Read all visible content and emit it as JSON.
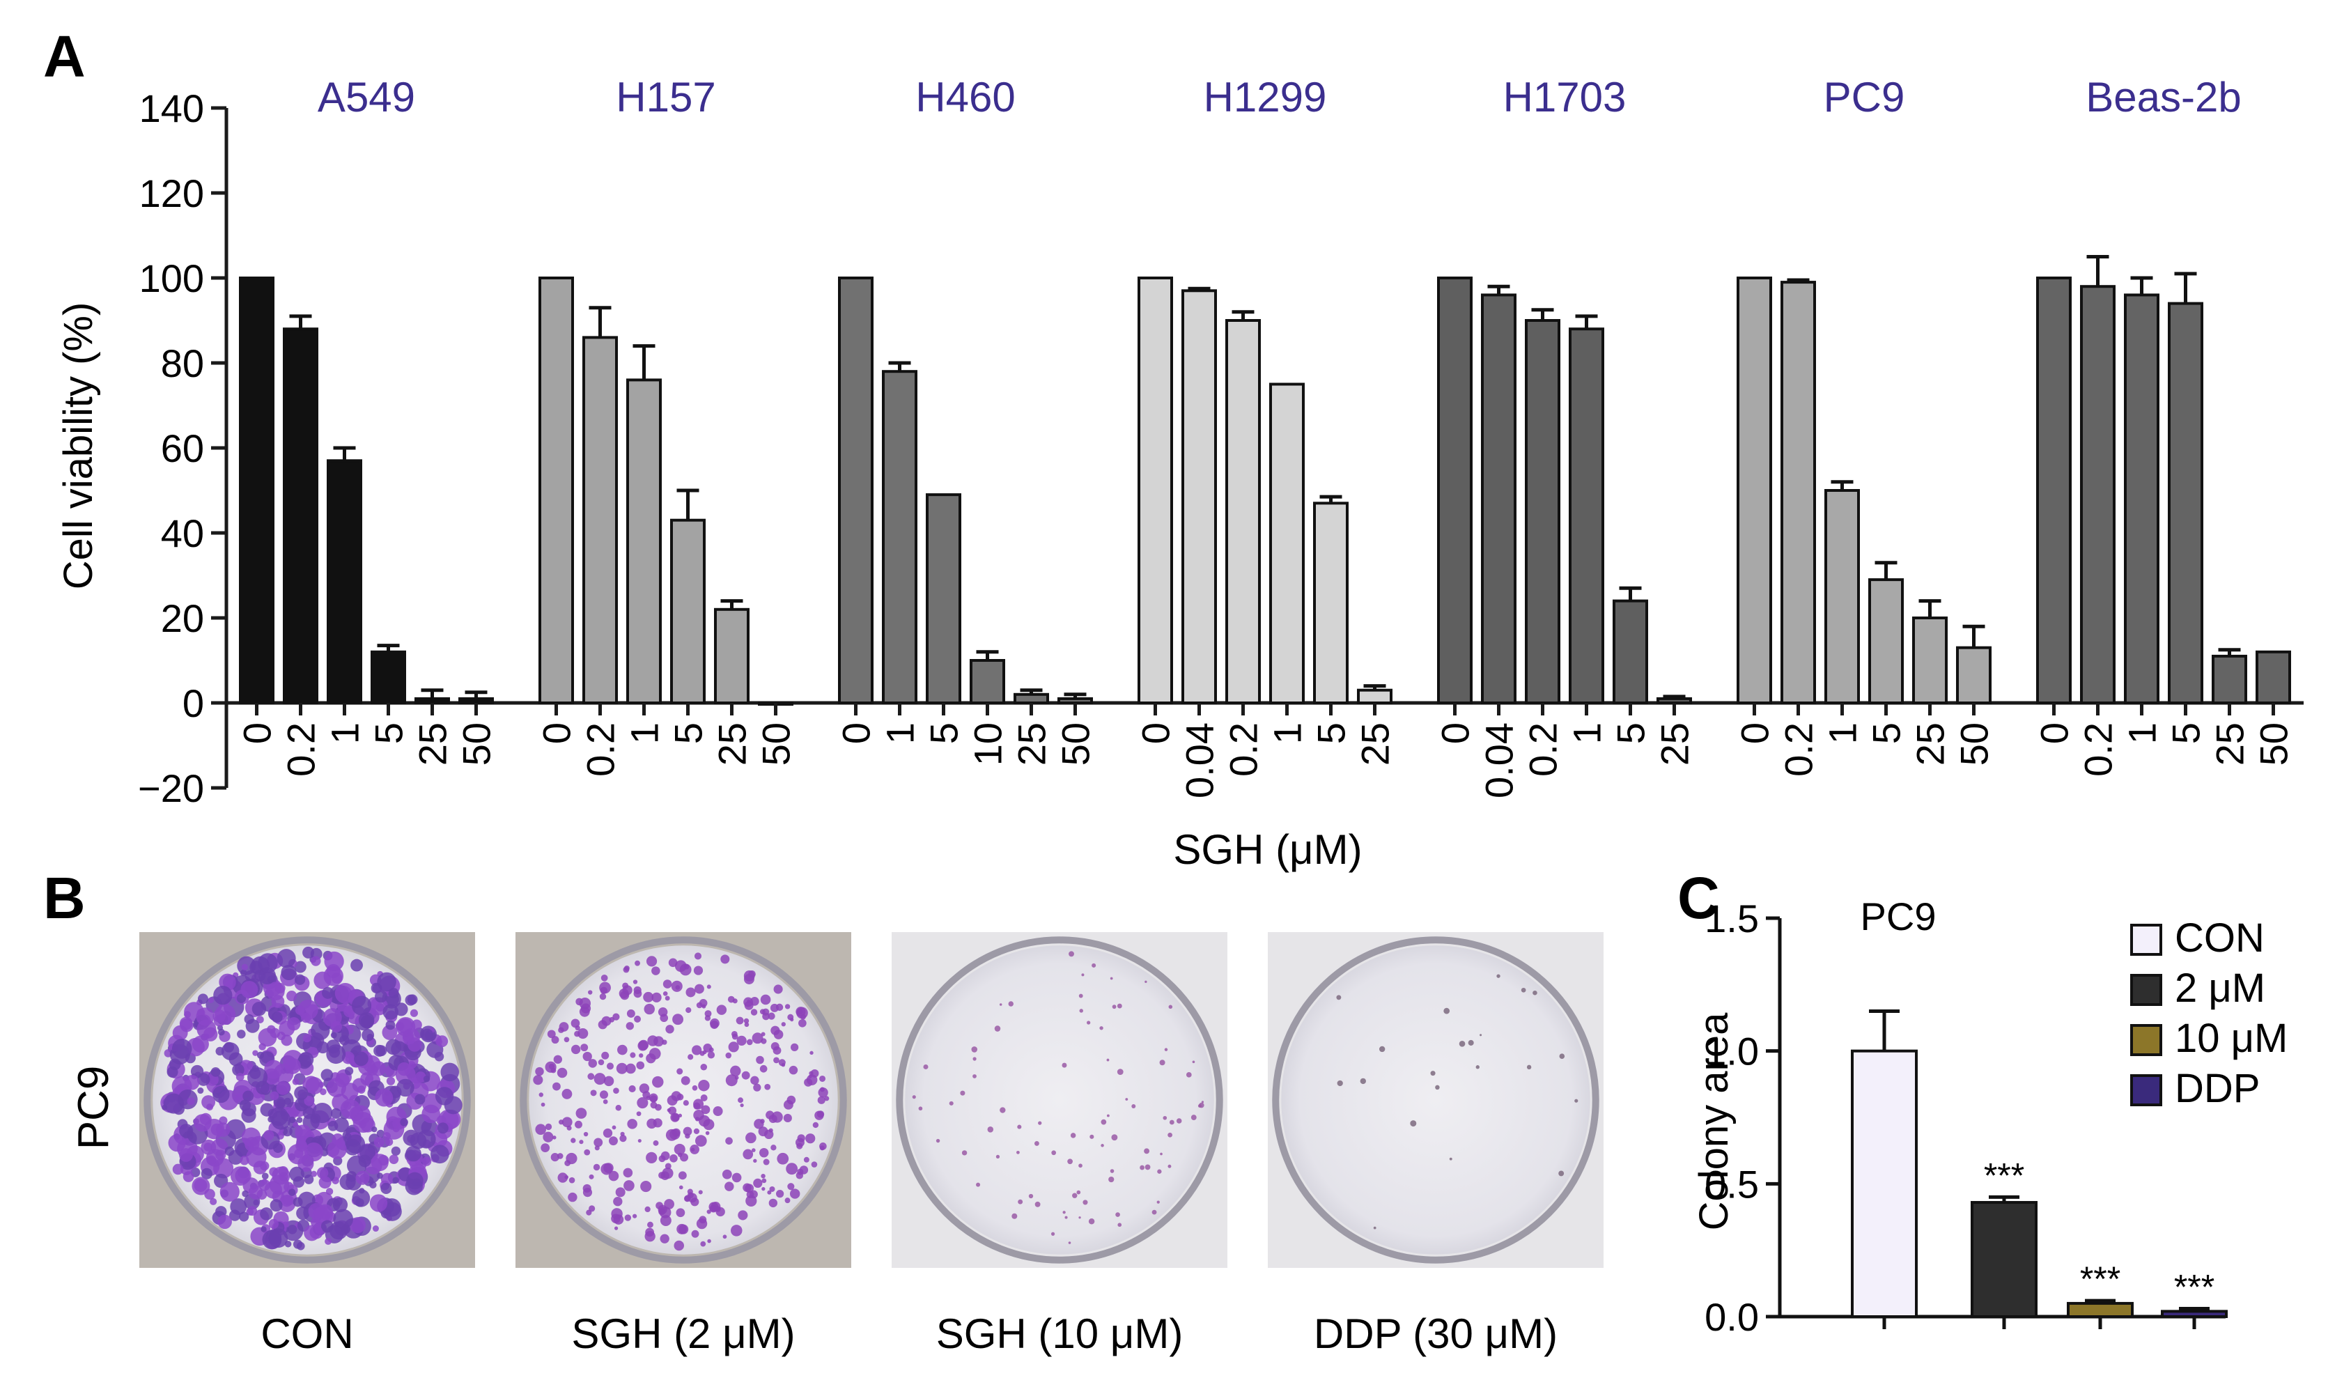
{
  "panels": {
    "A": "A",
    "B": "B",
    "C": "C"
  },
  "colors": {
    "title": "#3b2e8e",
    "axis": "#1a1a1a"
  },
  "chart_data": [
    {
      "type": "bar",
      "ylabel": "Cell viability (%)",
      "xlabel": "SGH (μM)",
      "ylim": [
        -20,
        140
      ],
      "yticks": [
        "140",
        "120",
        "100",
        "80",
        "60",
        "40",
        "20",
        "0",
        "−20"
      ],
      "ytick_values": [
        140,
        120,
        100,
        80,
        60,
        40,
        20,
        0,
        -20
      ],
      "groups": [
        {
          "name": "A549",
          "color": "#111111",
          "x": [
            "0",
            "0.2",
            "1",
            "5",
            "25",
            "50"
          ],
          "values": [
            100,
            88,
            57,
            12,
            1,
            1
          ],
          "errors": [
            0,
            3,
            3,
            1.5,
            2,
            1.5
          ]
        },
        {
          "name": "H157",
          "color": "#a3a3a3",
          "x": [
            "0",
            "0.2",
            "1",
            "5",
            "25",
            "50"
          ],
          "values": [
            100,
            86,
            76,
            43,
            22,
            0
          ],
          "errors": [
            0,
            7,
            8,
            7,
            2,
            0
          ]
        },
        {
          "name": "H460",
          "color": "#717171",
          "x": [
            "0",
            "1",
            "5",
            "10",
            "25",
            "50"
          ],
          "values": [
            100,
            78,
            49,
            10,
            2,
            1
          ],
          "errors": [
            0,
            2,
            0,
            2,
            1,
            1
          ]
        },
        {
          "name": "H1299",
          "color": "#d4d4d4",
          "x": [
            "0",
            "0.04",
            "0.2",
            "1",
            "5",
            "25"
          ],
          "values": [
            100,
            97,
            90,
            75,
            47,
            3
          ],
          "errors": [
            0,
            0.5,
            2,
            0,
            1.5,
            1
          ]
        },
        {
          "name": "H1703",
          "color": "#5f5f5f",
          "x": [
            "0",
            "0.04",
            "0.2",
            "1",
            "5",
            "25"
          ],
          "values": [
            100,
            96,
            90,
            88,
            24,
            1
          ],
          "errors": [
            0,
            2,
            2.5,
            3,
            3,
            0.5
          ]
        },
        {
          "name": "PC9",
          "color": "#a8a8a8",
          "x": [
            "0",
            "0.2",
            "1",
            "5",
            "25",
            "50"
          ],
          "values": [
            100,
            99,
            50,
            29,
            20,
            13
          ],
          "errors": [
            0,
            0.5,
            2,
            4,
            4,
            5
          ]
        },
        {
          "name": "Beas-2b",
          "color": "#646464",
          "x": [
            "0",
            "0.2",
            "1",
            "5",
            "25",
            "50"
          ],
          "values": [
            100,
            98,
            96,
            94,
            11,
            12
          ],
          "errors": [
            0,
            7,
            4,
            7,
            1.5,
            0
          ]
        }
      ]
    },
    {
      "type": "bar",
      "title": "PC9",
      "ylabel": "Colony area",
      "ylim": [
        0,
        1.5
      ],
      "yticks": [
        "1.5",
        "1.0",
        "0.5",
        "0.0"
      ],
      "ytick_values": [
        1.5,
        1.0,
        0.5,
        0.0
      ],
      "categories": [
        "CON",
        "2 μM",
        "10 μM",
        "DDP"
      ],
      "values": [
        1.0,
        0.43,
        0.05,
        0.02
      ],
      "errors": [
        0.15,
        0.02,
        0.01,
        0.01
      ],
      "colors": [
        "#f3f0fb",
        "#2e2e2e",
        "#8c7629",
        "#3a2a7c"
      ],
      "annotations": [
        "",
        "***",
        "***",
        "***"
      ],
      "legend": [
        "CON",
        "2 μM",
        "10 μM",
        "DDP"
      ],
      "legend_position": "top-right"
    }
  ],
  "plates": {
    "row_label": "PC9",
    "items": [
      {
        "caption": "CON",
        "density": 1.0
      },
      {
        "caption": "SGH (2 μM)",
        "density": 0.55
      },
      {
        "caption": "SGH (10 μM)",
        "density": 0.12
      },
      {
        "caption": "DDP (30 μM)",
        "density": 0.03
      }
    ]
  }
}
